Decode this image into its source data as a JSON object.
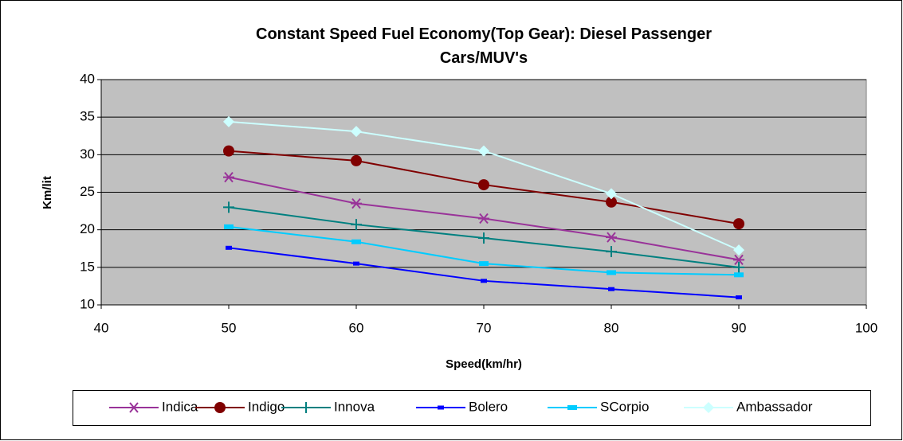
{
  "chart_data": {
    "type": "line",
    "title": "Constant Speed Fuel Economy(Top Gear): Diesel Passenger Cars/MUV's",
    "x_label": "Speed(km/hr)",
    "y_label": "Km/lit",
    "x": [
      50,
      60,
      70,
      80,
      90
    ],
    "xlim": [
      40,
      100
    ],
    "xticks": [
      40,
      50,
      60,
      70,
      80,
      90,
      100
    ],
    "ylim": [
      10,
      40
    ],
    "yticks": [
      10,
      15,
      20,
      25,
      30,
      35,
      40
    ],
    "grid": true,
    "legend": "bottom",
    "series": [
      {
        "name": "Indica",
        "color": "#993399",
        "marker": "star",
        "values": [
          27,
          23.5,
          21.5,
          19,
          16
        ]
      },
      {
        "name": "Indigo",
        "color": "#800000",
        "marker": "circle",
        "values": [
          30.5,
          29.2,
          26,
          23.7,
          20.8
        ]
      },
      {
        "name": "Innova",
        "color": "#008080",
        "marker": "plus",
        "values": [
          23,
          20.7,
          18.9,
          17.1,
          15
        ]
      },
      {
        "name": "Bolero",
        "color": "#0000ff",
        "marker": "dash",
        "values": [
          17.6,
          15.5,
          13.2,
          12.1,
          11
        ]
      },
      {
        "name": "SCorpio",
        "color": "#00ccff",
        "marker": "square",
        "values": [
          20.4,
          18.4,
          15.5,
          14.3,
          14
        ]
      },
      {
        "name": "Ambassador",
        "color": "#ccffff",
        "marker": "diamond",
        "values": [
          34.4,
          33.1,
          30.5,
          24.8,
          17.3
        ]
      }
    ]
  }
}
